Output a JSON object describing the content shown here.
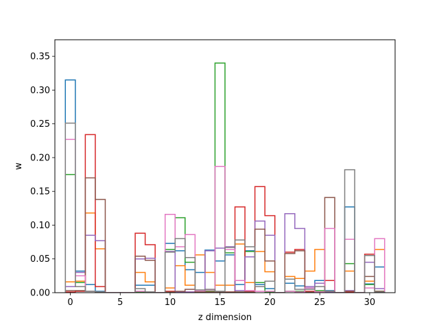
{
  "chart_data": {
    "type": "step",
    "xlabel": "z dimension",
    "ylabel": "w",
    "xlim": [
      -1.55,
      32.55
    ],
    "ylim": [
      0,
      0.3745
    ],
    "x_ticks": [
      0,
      5,
      10,
      15,
      20,
      25,
      30
    ],
    "y_ticks": [
      0.0,
      0.05,
      0.1,
      0.15,
      0.2,
      0.25,
      0.3,
      0.35
    ],
    "x_tick_labels": [
      "0",
      "5",
      "10",
      "15",
      "20",
      "25",
      "30"
    ],
    "y_tick_labels": [
      "0.00",
      "0.05",
      "0.10",
      "0.15",
      "0.20",
      "0.25",
      "0.30",
      "0.35"
    ],
    "x": [
      0,
      1,
      2,
      3,
      4,
      5,
      6,
      7,
      8,
      9,
      10,
      11,
      12,
      13,
      14,
      15,
      16,
      17,
      18,
      19,
      20,
      21,
      22,
      23,
      24,
      25,
      26,
      27,
      28,
      29,
      30,
      31
    ],
    "grid": false,
    "legend": "none",
    "series": [
      {
        "color": "#1f77b4",
        "values": [
          0.315,
          0.032,
          0.012,
          0.002,
          0,
          0,
          0,
          0.011,
          0.011,
          0,
          0.073,
          0.062,
          0.034,
          0.03,
          0.063,
          0.047,
          0.056,
          0.012,
          0.062,
          0.012,
          0.006,
          0,
          0.014,
          0.01,
          0.007,
          0.018,
          0.003,
          0,
          0.127,
          0,
          0.013,
          0.038
        ]
      },
      {
        "color": "#ff7f0e",
        "values": [
          0.016,
          0.017,
          0.118,
          0.065,
          0,
          0,
          0,
          0.03,
          0.016,
          0,
          0.007,
          0.04,
          0.011,
          0.056,
          0.03,
          0.011,
          0.011,
          0.072,
          0.015,
          0.061,
          0.031,
          0,
          0.024,
          0.021,
          0.032,
          0.064,
          0.002,
          0,
          0.032,
          0,
          0.017,
          0.064
        ]
      },
      {
        "color": "#2ca02c",
        "values": [
          0.175,
          0.015,
          0.002,
          0.001,
          0,
          0,
          0,
          0.001,
          0.001,
          0,
          0.064,
          0.111,
          0.045,
          0.001,
          0.002,
          0.34,
          0.059,
          0.001,
          0.061,
          0.015,
          0.001,
          0,
          0.002,
          0.002,
          0.001,
          0.003,
          0.001,
          0,
          0.043,
          0,
          0.012,
          0.002
        ]
      },
      {
        "color": "#d62728",
        "values": [
          0.001,
          0.002,
          0.234,
          0.009,
          0,
          0,
          0,
          0.088,
          0.071,
          0,
          0.002,
          0.001,
          0.001,
          0.001,
          0.001,
          0.001,
          0.001,
          0.127,
          0.002,
          0.157,
          0.114,
          0,
          0.06,
          0.064,
          0.002,
          0.001,
          0.018,
          0,
          0.001,
          0,
          0.057,
          0.001
        ]
      },
      {
        "color": "#9467bd",
        "values": [
          0.009,
          0.03,
          0.085,
          0.077,
          0,
          0,
          0,
          0.05,
          0.051,
          0,
          0.061,
          0.001,
          0.001,
          0.001,
          0.062,
          0.066,
          0.068,
          0.003,
          0.053,
          0.106,
          0.085,
          0,
          0.117,
          0.095,
          0.009,
          0.014,
          0.001,
          0,
          0.003,
          0,
          0.045,
          0.006
        ]
      },
      {
        "color": "#8c564b",
        "values": [
          0.003,
          0.003,
          0.17,
          0.138,
          0,
          0,
          0,
          0.054,
          0.048,
          0,
          0.001,
          0.002,
          0.005,
          0.001,
          0.001,
          0.001,
          0.001,
          0.001,
          0.001,
          0.094,
          0.047,
          0,
          0.058,
          0.062,
          0.001,
          0.001,
          0.141,
          0,
          0.002,
          0,
          0.024,
          0.002
        ]
      },
      {
        "color": "#e377c2",
        "values": [
          0.227,
          0.025,
          0.002,
          0.001,
          0,
          0,
          0,
          0.002,
          0.001,
          0,
          0.116,
          0.068,
          0.086,
          0.003,
          0.004,
          0.187,
          0.064,
          0.018,
          0.003,
          0.002,
          0.002,
          0,
          0.002,
          0.001,
          0.007,
          0.001,
          0.095,
          0,
          0.079,
          0,
          0.007,
          0.08
        ]
      },
      {
        "color": "#7f7f7f",
        "values": [
          0.251,
          0.009,
          0.002,
          0.001,
          0,
          0,
          0,
          0.006,
          0.001,
          0,
          0.06,
          0.08,
          0.052,
          0.004,
          0.005,
          0.002,
          0.067,
          0.078,
          0.068,
          0.009,
          0.017,
          0,
          0.02,
          0.005,
          0.005,
          0.009,
          0.002,
          0,
          0.182,
          0,
          0.055,
          0.001
        ]
      }
    ]
  }
}
